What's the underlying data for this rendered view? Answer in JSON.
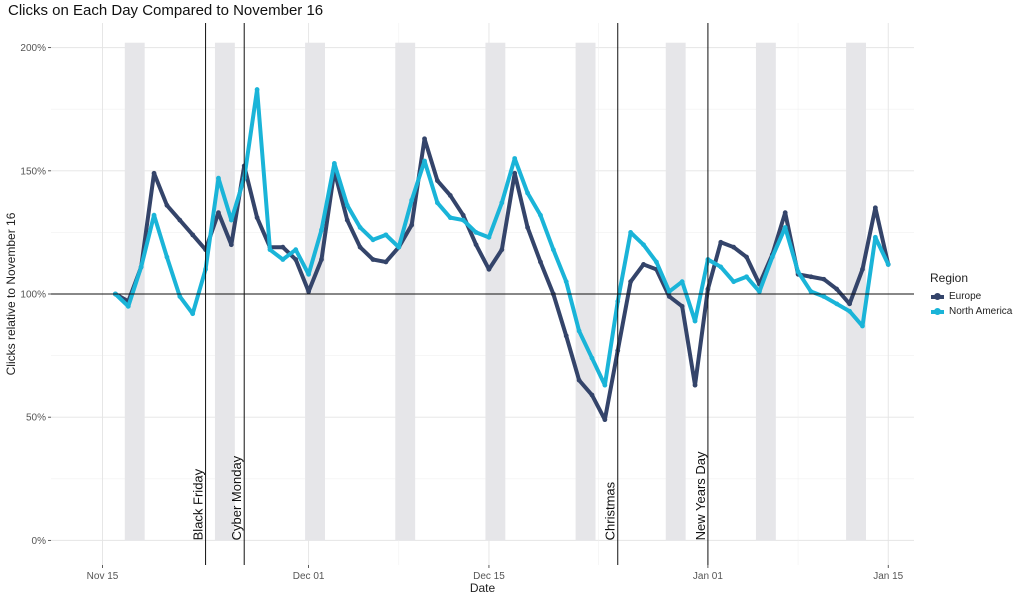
{
  "chart_data": {
    "type": "line",
    "title": "Clicks on Each Day Compared to November 16",
    "xlabel": "Date",
    "ylabel": "Clicks relative to November 16",
    "x_range": [
      "2018-11-11",
      "2019-01-17"
    ],
    "ylim": [
      -0.1,
      2.1
    ],
    "x_ticks": [
      {
        "date": "2018-11-15",
        "label": "Nov 15"
      },
      {
        "date": "2018-12-01",
        "label": "Dec 01"
      },
      {
        "date": "2018-12-15",
        "label": "Dec 15"
      },
      {
        "date": "2019-01-01",
        "label": "Jan 01"
      },
      {
        "date": "2019-01-15",
        "label": "Jan 15"
      }
    ],
    "y_ticks": [
      {
        "value": 0,
        "label": "0%"
      },
      {
        "value": 0.5,
        "label": "50%"
      },
      {
        "value": 1.0,
        "label": "100%"
      },
      {
        "value": 1.5,
        "label": "150%"
      },
      {
        "value": 2.0,
        "label": "200%"
      }
    ],
    "grid": true,
    "reference_line": 1.0,
    "weekend_shading": [
      [
        "2018-11-17",
        "2018-11-18"
      ],
      [
        "2018-11-24",
        "2018-11-25"
      ],
      [
        "2018-12-01",
        "2018-12-02"
      ],
      [
        "2018-12-08",
        "2018-12-09"
      ],
      [
        "2018-12-15",
        "2018-12-16"
      ],
      [
        "2018-12-22",
        "2018-12-23"
      ],
      [
        "2018-12-29",
        "2018-12-30"
      ],
      [
        "2019-01-05",
        "2019-01-06"
      ],
      [
        "2019-01-12",
        "2019-01-13"
      ]
    ],
    "shading_color": "#e6e6e9",
    "events": [
      {
        "date": "2018-11-23",
        "label": "Black Friday"
      },
      {
        "date": "2018-11-26",
        "label": "Cyber Monday"
      },
      {
        "date": "2018-12-25",
        "label": "Christmas"
      },
      {
        "date": "2019-01-01",
        "label": "New Years Day"
      }
    ],
    "x": [
      "2018-11-16",
      "2018-11-17",
      "2018-11-18",
      "2018-11-19",
      "2018-11-20",
      "2018-11-21",
      "2018-11-22",
      "2018-11-23",
      "2018-11-24",
      "2018-11-25",
      "2018-11-26",
      "2018-11-27",
      "2018-11-28",
      "2018-11-29",
      "2018-11-30",
      "2018-12-01",
      "2018-12-02",
      "2018-12-03",
      "2018-12-04",
      "2018-12-05",
      "2018-12-06",
      "2018-12-07",
      "2018-12-08",
      "2018-12-09",
      "2018-12-10",
      "2018-12-11",
      "2018-12-12",
      "2018-12-13",
      "2018-12-14",
      "2018-12-15",
      "2018-12-16",
      "2018-12-17",
      "2018-12-18",
      "2018-12-19",
      "2018-12-20",
      "2018-12-21",
      "2018-12-22",
      "2018-12-23",
      "2018-12-24",
      "2018-12-25",
      "2018-12-26",
      "2018-12-27",
      "2018-12-28",
      "2018-12-29",
      "2018-12-30",
      "2018-12-31",
      "2019-01-01",
      "2019-01-02",
      "2019-01-03",
      "2019-01-04",
      "2019-01-05",
      "2019-01-06",
      "2019-01-07",
      "2019-01-08",
      "2019-01-09",
      "2019-01-10",
      "2019-01-11",
      "2019-01-12",
      "2019-01-13",
      "2019-01-14",
      "2019-01-15"
    ],
    "series": [
      {
        "name": "Europe",
        "color": "#34446a",
        "values": [
          1.0,
          0.97,
          1.11,
          1.49,
          1.36,
          1.3,
          1.24,
          1.18,
          1.33,
          1.2,
          1.52,
          1.31,
          1.19,
          1.19,
          1.14,
          1.01,
          1.14,
          1.5,
          1.3,
          1.19,
          1.14,
          1.13,
          1.19,
          1.28,
          1.63,
          1.46,
          1.4,
          1.32,
          1.2,
          1.1,
          1.18,
          1.49,
          1.27,
          1.13,
          1.0,
          0.83,
          0.65,
          0.59,
          0.49,
          0.77,
          1.05,
          1.12,
          1.1,
          0.99,
          0.95,
          0.63,
          1.02,
          1.21,
          1.19,
          1.15,
          1.04,
          1.16,
          1.33,
          1.08,
          1.07,
          1.06,
          1.02,
          0.96,
          1.1,
          1.35,
          1.12
        ]
      },
      {
        "name": "North America",
        "color": "#1ab4d8",
        "values": [
          1.0,
          0.95,
          1.11,
          1.32,
          1.15,
          0.99,
          0.92,
          1.1,
          1.47,
          1.3,
          1.47,
          1.83,
          1.18,
          1.14,
          1.18,
          1.08,
          1.26,
          1.53,
          1.36,
          1.27,
          1.22,
          1.24,
          1.19,
          1.38,
          1.54,
          1.37,
          1.31,
          1.3,
          1.25,
          1.23,
          1.37,
          1.55,
          1.41,
          1.32,
          1.18,
          1.05,
          0.85,
          0.74,
          0.63,
          0.97,
          1.25,
          1.2,
          1.13,
          1.01,
          1.05,
          0.89,
          1.14,
          1.11,
          1.05,
          1.07,
          1.01,
          1.15,
          1.27,
          1.09,
          1.01,
          0.99,
          0.96,
          0.93,
          0.87,
          1.23,
          1.12
        ]
      }
    ],
    "legend": {
      "title": "Region",
      "position": "right"
    }
  }
}
